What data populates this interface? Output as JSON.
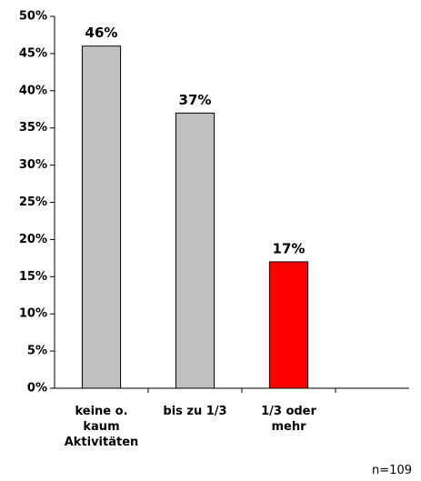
{
  "chart_data": {
    "type": "bar",
    "categories": [
      "keine o. kaum Aktivitäten",
      "bis zu 1/3",
      "1/3 oder mehr"
    ],
    "values": [
      46,
      37,
      17
    ],
    "value_labels": [
      "46%",
      "37%",
      "17%"
    ],
    "colors": [
      "#c0c0c0",
      "#c0c0c0",
      "#ff0000"
    ],
    "ylim": [
      0,
      50
    ],
    "yticks": [
      {
        "value": 0,
        "label": "0%"
      },
      {
        "value": 5,
        "label": "5%"
      },
      {
        "value": 10,
        "label": "10%"
      },
      {
        "value": 15,
        "label": "15%"
      },
      {
        "value": 20,
        "label": "20%"
      },
      {
        "value": 25,
        "label": "25%"
      },
      {
        "value": 30,
        "label": "30%"
      },
      {
        "value": 35,
        "label": "35%"
      },
      {
        "value": 40,
        "label": "40%"
      },
      {
        "value": 45,
        "label": "45%"
      },
      {
        "value": 50,
        "label": "50%"
      }
    ],
    "grid": false,
    "note": "n=109"
  }
}
